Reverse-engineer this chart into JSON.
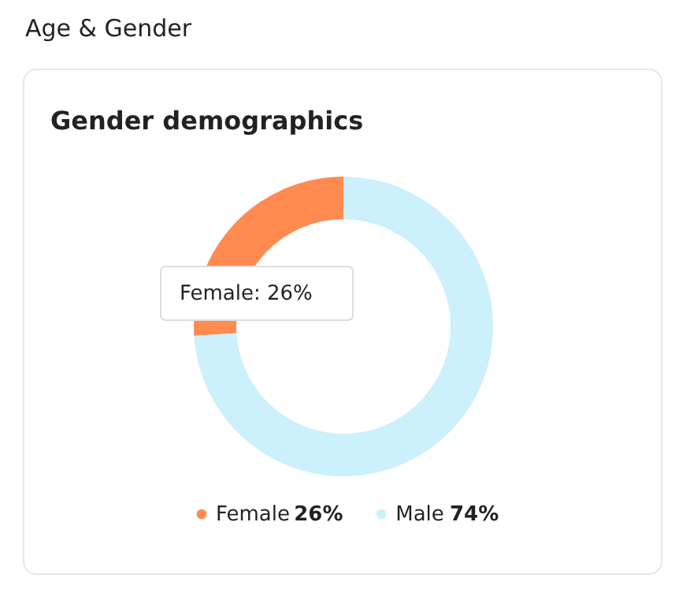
{
  "chart_data": {
    "type": "donut",
    "title": "Age & Gender",
    "subtitle": "Gender demographics",
    "categories": [
      "Female",
      "Male"
    ],
    "values": [
      26,
      74
    ],
    "colors": [
      "#ff8b50",
      "#ccf0fc"
    ],
    "value_labels": [
      "26%",
      "74%"
    ],
    "legend": "bottom",
    "annotations": [
      "Female: 26%"
    ]
  }
}
